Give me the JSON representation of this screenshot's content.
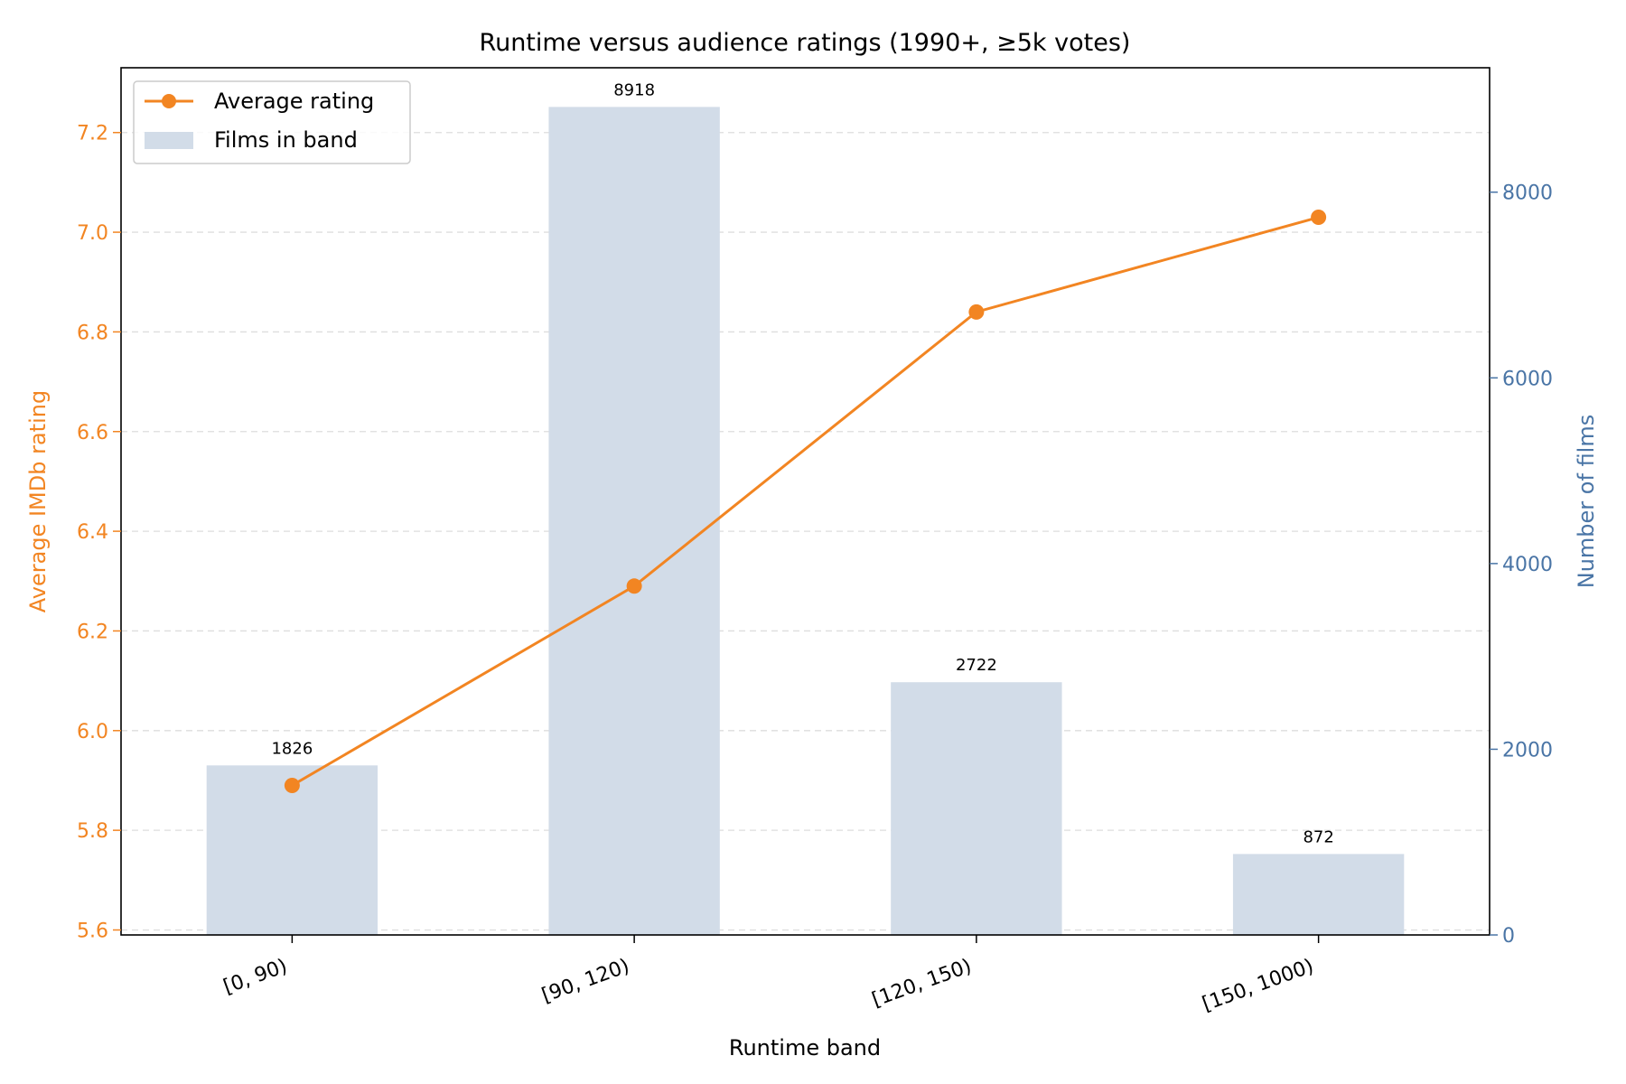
{
  "chart_data": {
    "type": "bar+line",
    "title": "Runtime versus audience ratings (1990+, ≥5k votes)",
    "xlabel": "Runtime band",
    "ylabel_left": "Average IMDb rating",
    "ylabel_right": "Number of films",
    "categories": [
      "[0, 90)",
      "[90, 120)",
      "[120, 150)",
      "[150, 1000)"
    ],
    "ylim_left": [
      5.59,
      7.33
    ],
    "ylim_right": [
      0,
      9340
    ],
    "yticks_left": [
      "5.6",
      "5.8",
      "6.0",
      "6.2",
      "6.4",
      "6.6",
      "6.8",
      "7.0",
      "7.2"
    ],
    "yticks_right": [
      "0",
      "2000",
      "4000",
      "6000",
      "8000"
    ],
    "grid": "horizontal dashed (left axis)",
    "legend_position": "top-left",
    "series": [
      {
        "name": "Average rating",
        "type": "line",
        "axis": "left",
        "color": "#f28522",
        "values": [
          5.89,
          6.29,
          6.84,
          7.03
        ]
      },
      {
        "name": "Films in band",
        "type": "bar",
        "axis": "right",
        "color": "#d2dce8",
        "values": [
          1826,
          8918,
          2722,
          872
        ],
        "data_labels": [
          "1826",
          "8918",
          "2722",
          "872"
        ]
      }
    ],
    "left_axis_color": "#f28522",
    "right_axis_color": "#4a75a6"
  }
}
